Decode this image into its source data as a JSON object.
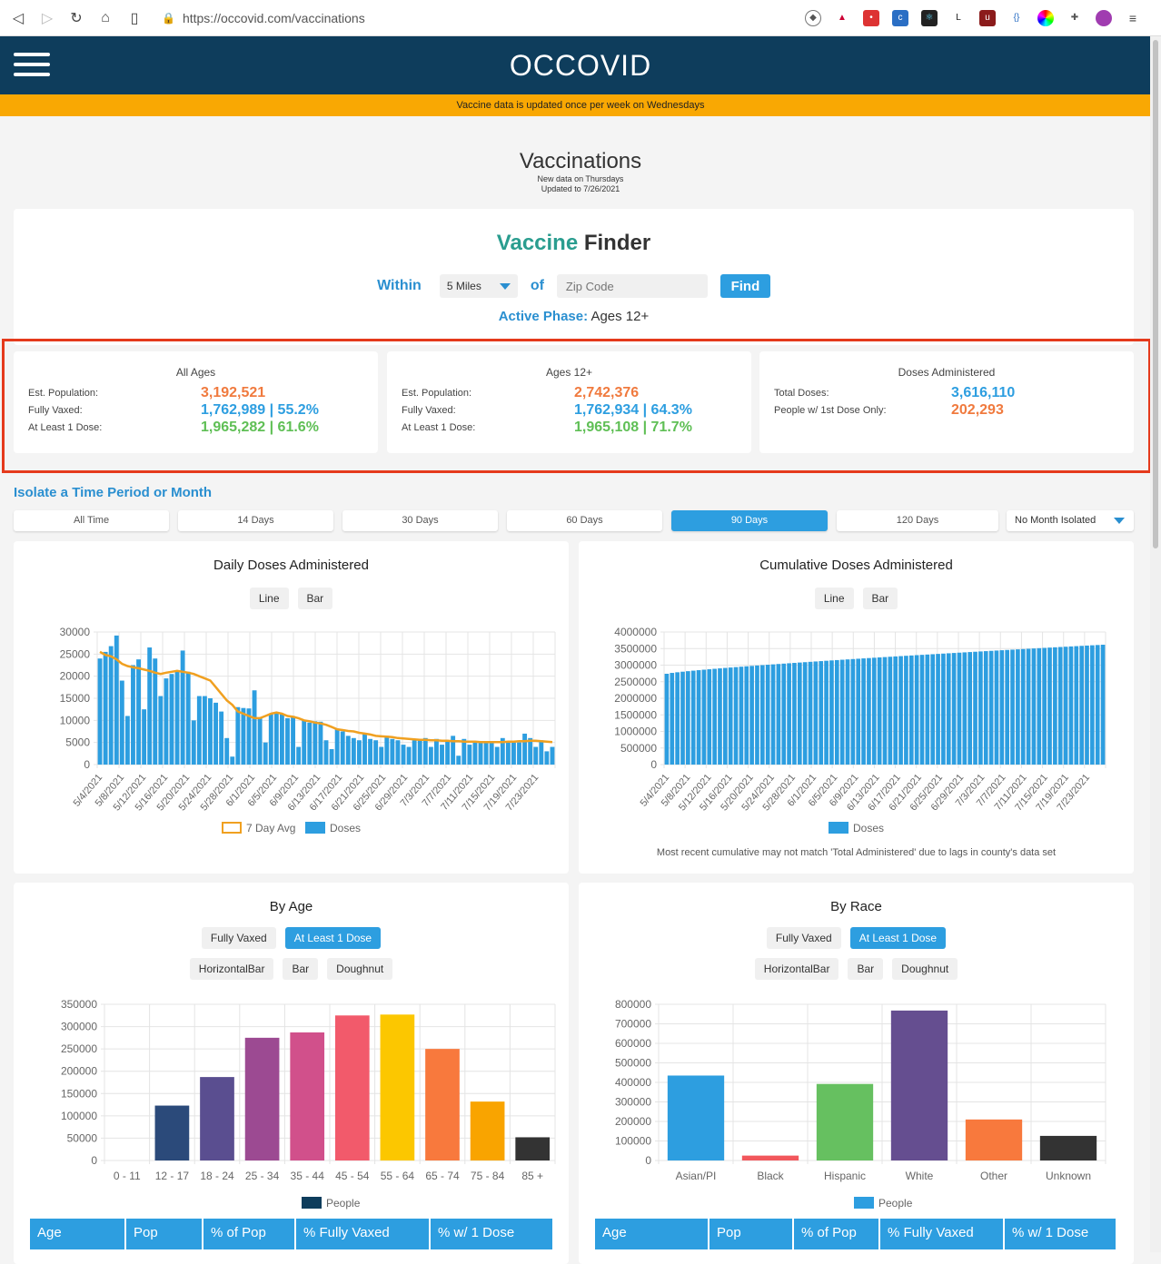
{
  "browser": {
    "url": "https://occovid.com/vaccinations"
  },
  "header": {
    "brand": "OCCOVID"
  },
  "notice": "Vaccine data is updated once per week on Wednesdays",
  "page": {
    "title": "Vaccinations",
    "sub1": "New data on Thursdays",
    "sub2": "Updated to 7/26/2021"
  },
  "finder": {
    "title_a": "Vaccine",
    "title_b": " Finder",
    "within": "Within",
    "distance": "5 Miles",
    "of": "of",
    "zip_placeholder": "Zip Code",
    "find": "Find",
    "phase_label": "Active Phase:",
    "phase_value": " Ages 12+"
  },
  "stats": [
    {
      "title": "All Ages",
      "rows": [
        {
          "label": "Est. Population:",
          "value": "3,192,521",
          "color": "orange"
        },
        {
          "label": "Fully Vaxed:",
          "value": "1,762,989 | 55.2%",
          "color": "blue"
        },
        {
          "label": "At Least 1 Dose:",
          "value": "1,965,282 | 61.6%",
          "color": "green"
        }
      ]
    },
    {
      "title": "Ages 12+",
      "rows": [
        {
          "label": "Est. Population:",
          "value": "2,742,376",
          "color": "orange"
        },
        {
          "label": "Fully Vaxed:",
          "value": "1,762,934 | 64.3%",
          "color": "blue"
        },
        {
          "label": "At Least 1 Dose:",
          "value": "1,965,108 | 71.7%",
          "color": "green"
        }
      ]
    },
    {
      "title": "Doses Administered",
      "rows": [
        {
          "label": "Total Doses:",
          "value": "3,616,110",
          "color": "blue"
        },
        {
          "label": "People w/ 1st Dose Only:",
          "value": "202,293",
          "color": "orange"
        }
      ]
    }
  ],
  "isolate": {
    "label": "Isolate a Time Period or Month",
    "buttons": [
      "All Time",
      "14 Days",
      "30 Days",
      "60 Days",
      "90 Days",
      "120 Days"
    ],
    "active": "90 Days",
    "month": "No Month Isolated"
  },
  "toggles": {
    "line": "Line",
    "bar": "Bar",
    "fully": "Fully Vaxed",
    "atleast": "At Least 1 Dose",
    "hbar": "HorizontalBar",
    "doughnut": "Doughnut"
  },
  "charts": {
    "daily": {
      "title": "Daily Doses Administered",
      "legend_avg": "7 Day Avg",
      "legend_doses": "Doses"
    },
    "cumulative": {
      "title": "Cumulative Doses Administered",
      "legend": "Doses",
      "note": "Most recent cumulative may not match 'Total Administered' due to lags in county's data set"
    },
    "age": {
      "title": "By Age",
      "legend": "People"
    },
    "race": {
      "title": "By Race",
      "legend": "People"
    }
  },
  "tables": {
    "age_headers": [
      "Age",
      "Pop",
      "% of Pop",
      "% Fully Vaxed",
      "% w/ 1 Dose"
    ],
    "race_headers": [
      "Age",
      "Pop",
      "% of Pop",
      "% Fully Vaxed",
      "% w/ 1 Dose"
    ]
  },
  "chart_data": [
    {
      "type": "bar",
      "title": "Daily Doses Administered",
      "x_ticks": [
        "5/4/2021",
        "5/8/2021",
        "5/12/2021",
        "5/16/2021",
        "5/20/2021",
        "5/24/2021",
        "5/28/2021",
        "6/1/2021",
        "6/5/2021",
        "6/9/2021",
        "6/13/2021",
        "6/17/2021",
        "6/21/2021",
        "6/25/2021",
        "6/29/2021",
        "7/3/2021",
        "7/7/2021",
        "7/11/2021",
        "7/15/2021",
        "7/19/2021",
        "7/23/2021"
      ],
      "ylim": [
        0,
        30000
      ],
      "y_ticks": [
        0,
        5000,
        10000,
        15000,
        20000,
        25000,
        30000
      ],
      "series": [
        {
          "name": "Doses",
          "type": "bar",
          "values": [
            24000,
            25500,
            26800,
            29200,
            19000,
            11000,
            22500,
            23800,
            12500,
            26500,
            24000,
            15500,
            19500,
            20500,
            21000,
            25800,
            21000,
            10000,
            15500,
            15500,
            15000,
            14000,
            12000,
            6000,
            1800,
            13000,
            12800,
            12700,
            16800,
            10500,
            5000,
            11500,
            11800,
            11500,
            10500,
            11000,
            4000,
            10000,
            9500,
            9800,
            9700,
            5500,
            3500,
            8000,
            7500,
            6500,
            6000,
            5500,
            7000,
            5800,
            5500,
            4000,
            6500,
            5800,
            5500,
            4500,
            4000,
            5500,
            5500,
            6000,
            4000,
            5800,
            4500,
            5500,
            6500,
            2000,
            5800,
            4500,
            5000,
            5300,
            5000,
            5000,
            4000,
            6000,
            5000,
            5000,
            5000,
            7000,
            6000,
            4000,
            5500,
            3000,
            4000
          ]
        },
        {
          "name": "7 Day Avg",
          "type": "line",
          "values": [
            25500,
            24800,
            24500,
            23800,
            22800,
            22300,
            22000,
            21800,
            21500,
            21200,
            20800,
            20500,
            20800,
            21000,
            21200,
            21000,
            20800,
            20500,
            20000,
            19500,
            19000,
            17500,
            16000,
            14500,
            13500,
            12000,
            11500,
            11000,
            10500,
            10500,
            11000,
            11500,
            11800,
            11500,
            11000,
            10800,
            10500,
            10000,
            9800,
            9500,
            9300,
            9000,
            8500,
            8000,
            7800,
            7600,
            7500,
            7200,
            7000,
            6800,
            6500,
            6400,
            6300,
            6200,
            6000,
            5900,
            5800,
            5700,
            5600,
            5600,
            5500,
            5500,
            5400,
            5400,
            5300,
            5300,
            5200,
            5200,
            5200,
            5100,
            5100,
            5100,
            5100,
            5100,
            5200,
            5200,
            5300,
            5300,
            5400,
            5400,
            5300,
            5200,
            5100
          ]
        }
      ]
    },
    {
      "type": "bar",
      "title": "Cumulative Doses Administered",
      "x_ticks": [
        "5/4/2021",
        "5/8/2021",
        "5/12/2021",
        "5/16/2021",
        "5/20/2021",
        "5/24/2021",
        "5/28/2021",
        "6/1/2021",
        "6/5/2021",
        "6/9/2021",
        "6/13/2021",
        "6/17/2021",
        "6/21/2021",
        "6/25/2021",
        "6/29/2021",
        "7/3/2021",
        "7/7/2021",
        "7/11/2021",
        "7/15/2021",
        "7/19/2021",
        "7/23/2021"
      ],
      "ylim": [
        0,
        4000000
      ],
      "y_ticks": [
        0,
        500000,
        1000000,
        1500000,
        2000000,
        2500000,
        3000000,
        3500000,
        4000000
      ],
      "series": [
        {
          "name": "Doses",
          "start": 2740000,
          "end": 3616110,
          "count": 83
        }
      ]
    },
    {
      "type": "bar",
      "title": "By Age",
      "categories": [
        "0 - 11",
        "12 - 17",
        "18 - 24",
        "25 - 34",
        "35 - 44",
        "45 - 54",
        "55 - 64",
        "65 - 74",
        "75 - 84",
        "85 +"
      ],
      "values": [
        0,
        123000,
        187000,
        275000,
        287000,
        325000,
        327000,
        250000,
        132000,
        52000
      ],
      "colors": [
        "#2b4a7a",
        "#2b4a7a",
        "#5a4e90",
        "#9c4a92",
        "#d1508b",
        "#f25a6b",
        "#fcc700",
        "#f8793d",
        "#f9a400",
        "#333333"
      ],
      "ylim": [
        0,
        350000
      ],
      "y_ticks": [
        0,
        50000,
        100000,
        150000,
        200000,
        250000,
        300000,
        350000
      ],
      "legend": "People"
    },
    {
      "type": "bar",
      "title": "By Race",
      "categories": [
        "Asian/PI",
        "Black",
        "Hispanic",
        "White",
        "Other",
        "Unknown"
      ],
      "values": [
        435000,
        25000,
        392000,
        768000,
        210000,
        126000
      ],
      "colors": [
        "#2d9ee0",
        "#f2575c",
        "#66c060",
        "#654e90",
        "#f8793d",
        "#333333"
      ],
      "ylim": [
        0,
        800000
      ],
      "y_ticks": [
        0,
        100000,
        200000,
        300000,
        400000,
        500000,
        600000,
        700000,
        800000
      ],
      "legend": "People"
    }
  ]
}
